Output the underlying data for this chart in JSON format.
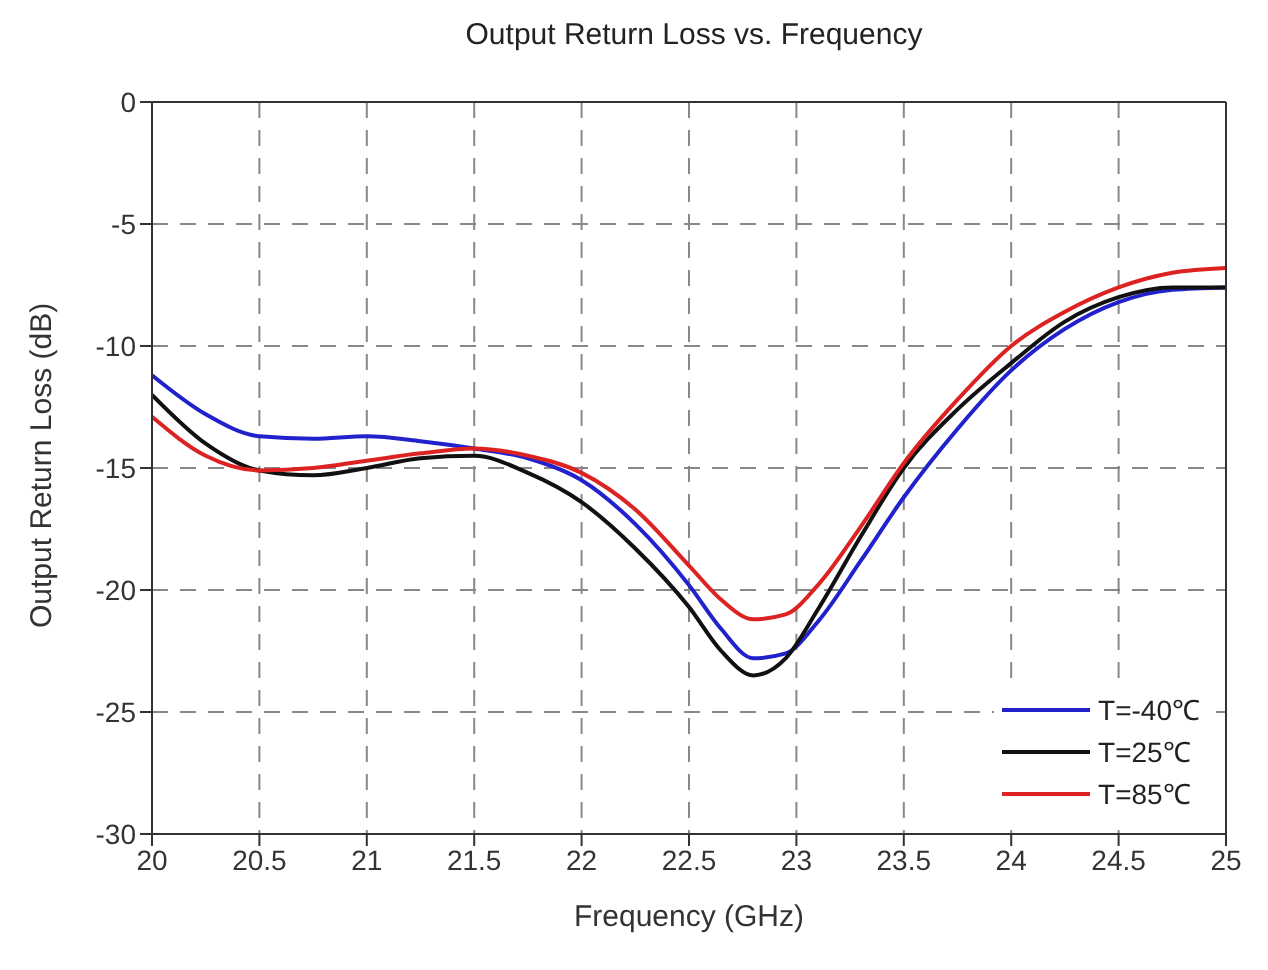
{
  "chart_data": {
    "type": "line",
    "title": "Output Return Loss vs. Frequency",
    "xlabel": "Frequency (GHz)",
    "ylabel": "Output Return Loss (dB)",
    "x": [
      20,
      20.25,
      20.5,
      20.75,
      21,
      21.25,
      21.5,
      21.75,
      22,
      22.25,
      22.5,
      22.65,
      22.8,
      22.95,
      23.1,
      23.3,
      23.5,
      23.75,
      24,
      24.25,
      24.5,
      24.75,
      25
    ],
    "series": [
      {
        "name": "T=-40℃",
        "color": "#2222cc",
        "values": [
          -11.2,
          -12.8,
          -13.7,
          -13.8,
          -13.7,
          -13.9,
          -14.2,
          -14.6,
          -15.5,
          -17.3,
          -19.8,
          -21.6,
          -22.8,
          -22.6,
          -21.3,
          -18.8,
          -16.2,
          -13.4,
          -11.0,
          -9.3,
          -8.2,
          -7.7,
          -7.6
        ]
      },
      {
        "name": "T=25℃",
        "color": "#111111",
        "values": [
          -12.0,
          -14.0,
          -15.1,
          -15.3,
          -15.0,
          -14.6,
          -14.5,
          -15.2,
          -16.4,
          -18.3,
          -20.7,
          -22.5,
          -23.5,
          -22.8,
          -20.8,
          -17.8,
          -15.0,
          -12.6,
          -10.7,
          -9.0,
          -8.0,
          -7.6,
          -7.6
        ]
      },
      {
        "name": "T=85℃",
        "color": "#dd2222",
        "values": [
          -12.9,
          -14.5,
          -15.1,
          -15.0,
          -14.7,
          -14.4,
          -14.2,
          -14.5,
          -15.2,
          -16.7,
          -19.0,
          -20.4,
          -21.2,
          -21.0,
          -19.8,
          -17.4,
          -14.8,
          -12.2,
          -10.0,
          -8.6,
          -7.6,
          -7.0,
          -6.8
        ]
      }
    ],
    "xlim": [
      20,
      25
    ],
    "xticks": [
      20,
      20.5,
      21,
      21.5,
      22,
      22.5,
      23,
      23.5,
      24,
      24.5,
      25
    ],
    "ylim": [
      -30,
      0
    ],
    "yticks": [
      -30,
      -25,
      -20,
      -15,
      -10,
      -5,
      0
    ],
    "grid": true,
    "legend": "bottom right",
    "line_style": "solid",
    "marker": "none"
  }
}
